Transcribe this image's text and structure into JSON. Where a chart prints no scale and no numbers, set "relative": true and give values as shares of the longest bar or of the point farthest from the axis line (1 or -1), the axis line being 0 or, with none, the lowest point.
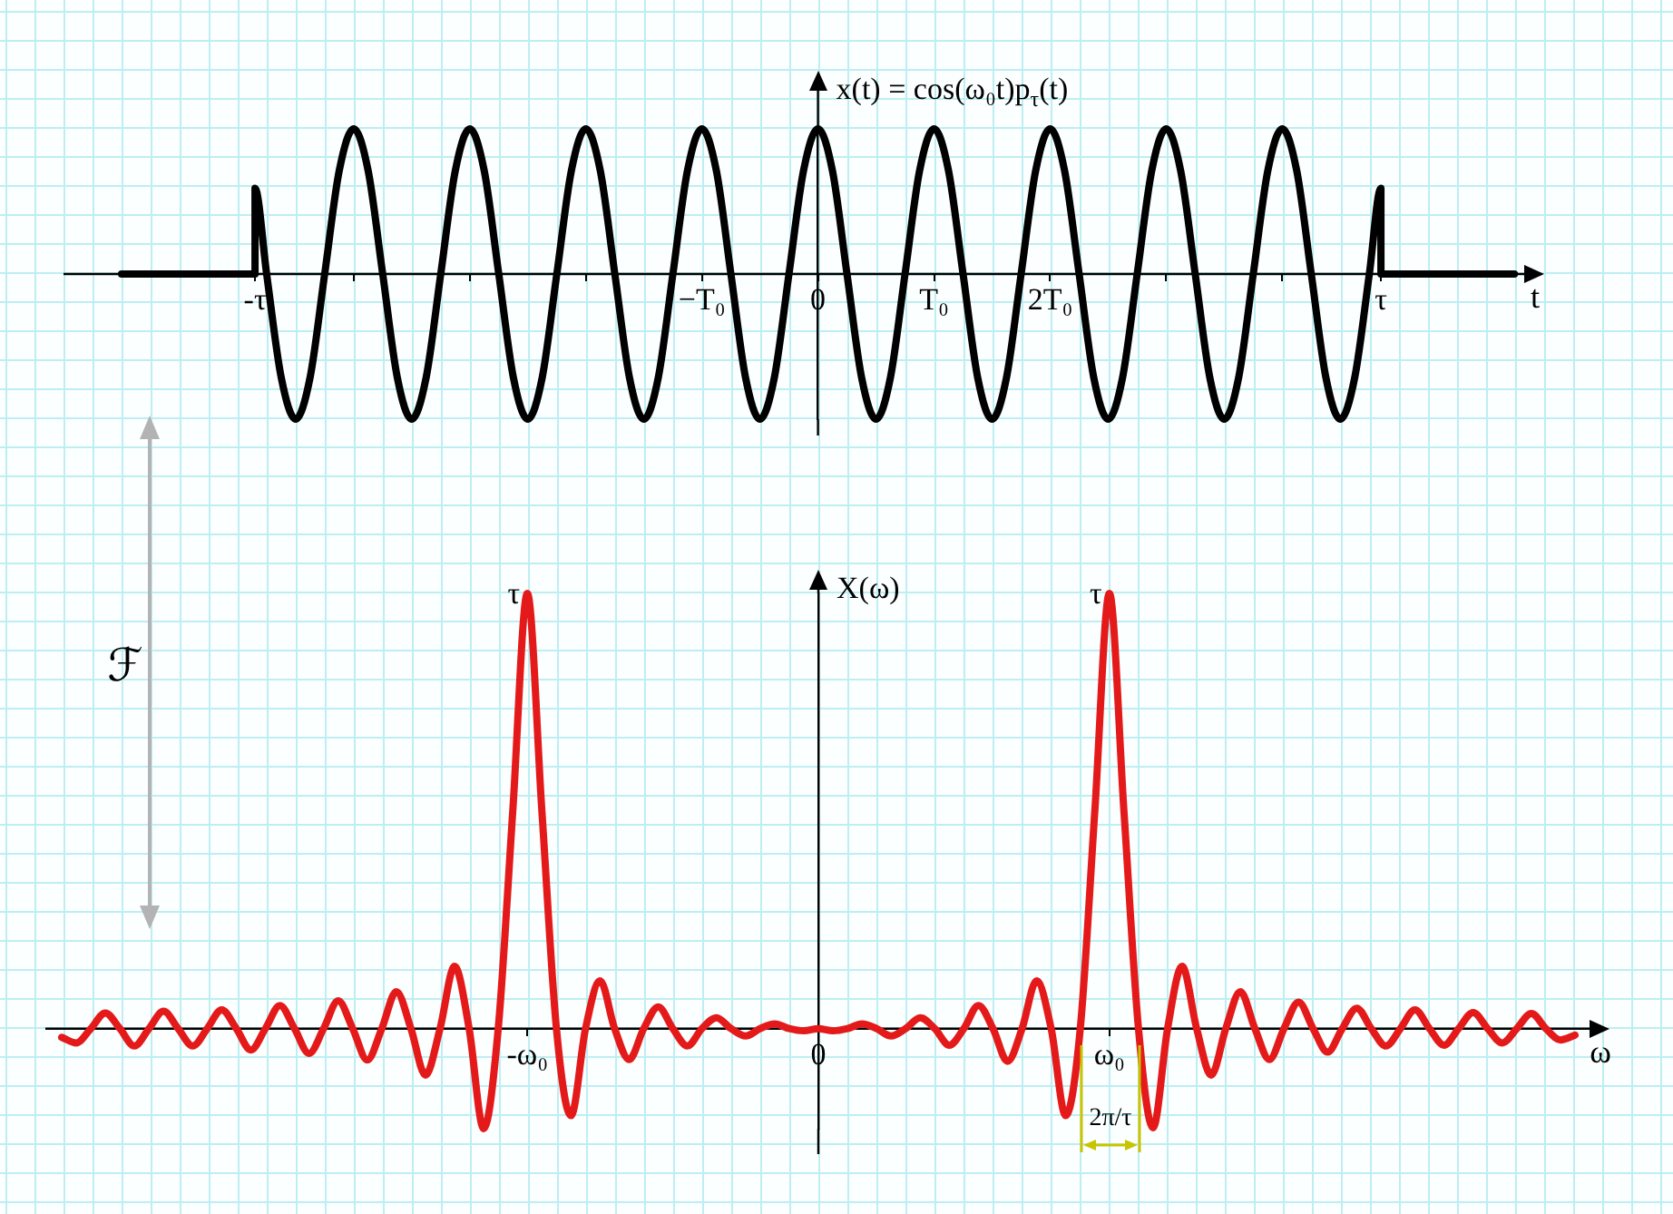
{
  "chart_data": [
    {
      "type": "line",
      "ylabel": "x(t) = cos(ω₀t)p$_{τ}$(t)",
      "xlabel": "t",
      "relative": true,
      "color": "#000000",
      "xlim": [
        -6.5,
        6.1
      ],
      "xticks": [
        {
          "value": -4.85,
          "label": "-τ"
        },
        {
          "value": -4,
          "label": null
        },
        {
          "value": -3,
          "label": null
        },
        {
          "value": -2,
          "label": null
        },
        {
          "value": -1,
          "label": "−T₀"
        },
        0,
        {
          "value": 1,
          "label": "T₀"
        },
        {
          "value": 2,
          "label": "2T₀"
        },
        {
          "value": 3,
          "label": null
        },
        {
          "value": 4,
          "label": null
        },
        {
          "value": 4.85,
          "label": "τ"
        }
      ],
      "x": [
        -6,
        -4.85,
        -4.85,
        -4.75,
        -4.625,
        -4.5,
        -4.375,
        -4.25,
        -4.125,
        -4,
        -3.875,
        -3.75,
        -3.625,
        -3.5,
        -3.375,
        -3.25,
        -3.125,
        -3,
        -2.875,
        -2.75,
        -2.625,
        -2.5,
        -2.375,
        -2.25,
        -2.125,
        -2,
        -1.875,
        -1.75,
        -1.625,
        -1.5,
        -1.375,
        -1.25,
        -1.125,
        -1,
        -0.875,
        -0.75,
        -0.625,
        -0.5,
        -0.375,
        -0.25,
        -0.125,
        0,
        0.125,
        0.25,
        0.375,
        0.5,
        0.625,
        0.75,
        0.875,
        1,
        1.125,
        1.25,
        1.375,
        1.5,
        1.625,
        1.75,
        1.875,
        2,
        2.125,
        2.25,
        2.375,
        2.5,
        2.625,
        2.75,
        2.875,
        3,
        3.125,
        3.25,
        3.375,
        3.5,
        3.625,
        3.75,
        3.875,
        4,
        4.125,
        4.25,
        4.375,
        4.5,
        4.625,
        4.75,
        4.85,
        4.85,
        6
      ],
      "values": [
        0,
        0,
        0.59,
        0,
        -0.71,
        -1,
        -0.71,
        0,
        0.71,
        1,
        0.71,
        0,
        -0.71,
        -1,
        -0.71,
        0,
        0.71,
        1,
        0.71,
        0,
        -0.71,
        -1,
        -0.71,
        0,
        0.71,
        1,
        0.71,
        0,
        -0.71,
        -1,
        -0.71,
        0,
        0.71,
        1,
        0.71,
        0,
        -0.71,
        -1,
        -0.71,
        0,
        0.71,
        1,
        0.71,
        0,
        -0.71,
        -1,
        -0.71,
        0,
        0.71,
        1,
        0.71,
        0,
        -0.71,
        -1,
        -0.71,
        0,
        0.71,
        1,
        0.71,
        0,
        -0.71,
        -1,
        -0.71,
        0,
        0.71,
        1,
        0.71,
        0,
        -0.71,
        -1,
        -0.71,
        0,
        0.71,
        1,
        0.71,
        0,
        -0.71,
        -1,
        -0.71,
        0,
        0.59,
        0,
        0
      ]
    },
    {
      "type": "line",
      "ylabel": "X(ω)",
      "xlabel": "ω",
      "relative": true,
      "color": "#e41a1a",
      "categories": [
        null,
        null,
        null,
        null,
        null,
        null,
        null,
        null,
        null,
        null,
        null,
        null,
        null,
        null,
        null,
        null,
        null,
        null,
        null,
        null,
        null,
        null,
        null,
        null,
        null,
        null,
        null,
        null,
        null,
        null,
        null,
        null,
        "-ω₀",
        null,
        null,
        null,
        null,
        null,
        null,
        null,
        null,
        null,
        null,
        null,
        null,
        null,
        null,
        null,
        null,
        null,
        null,
        null,
        "0",
        null,
        null,
        null,
        null,
        null,
        null,
        null,
        null,
        null,
        null,
        null,
        null,
        null,
        null,
        null,
        null,
        null,
        null,
        null,
        "ω₀",
        null,
        null,
        null,
        null,
        null,
        null,
        null,
        null,
        null,
        null,
        null,
        null,
        null,
        null,
        null,
        null,
        null,
        null,
        null,
        null,
        null,
        null,
        null,
        null,
        null,
        null,
        null,
        null,
        null,
        null,
        null,
        null
      ],
      "values": [
        -0.02,
        -0.033,
        0,
        0.036,
        0,
        -0.04,
        0,
        0.04,
        0,
        -0.04,
        0,
        0.043,
        0,
        -0.049,
        0,
        0.053,
        0,
        -0.057,
        0,
        0.064,
        0,
        -0.072,
        0,
        0.085,
        0,
        -0.107,
        0,
        0.143,
        0,
        -0.23,
        0,
        0.5,
        1,
        0.5,
        0,
        -0.2,
        0,
        0.11,
        0,
        -0.071,
        0,
        0.05,
        0,
        -0.04,
        0,
        0.025,
        0,
        -0.017,
        0,
        0.011,
        0,
        -0.005,
        0,
        -0.005,
        0,
        0.011,
        0,
        -0.017,
        0,
        0.025,
        0,
        -0.038,
        0,
        0.053,
        0,
        -0.075,
        0,
        0.11,
        0,
        -0.2,
        0,
        0.5,
        1,
        0.5,
        0,
        -0.228,
        0,
        0.143,
        0,
        -0.107,
        0,
        0.085,
        0,
        -0.071,
        0,
        0.061,
        0,
        -0.054,
        0,
        0.047,
        0,
        -0.04,
        0,
        0.043,
        0,
        -0.038,
        0,
        0.037,
        0,
        -0.033,
        0,
        0.035,
        0,
        -0.026,
        -0.015
      ],
      "annotations": [
        {
          "text": "τ",
          "x": "-ω₀",
          "y": 1
        },
        {
          "text": "τ",
          "x": "ω₀",
          "y": 1
        },
        "2π/τ",
        "ℱ"
      ]
    }
  ]
}
